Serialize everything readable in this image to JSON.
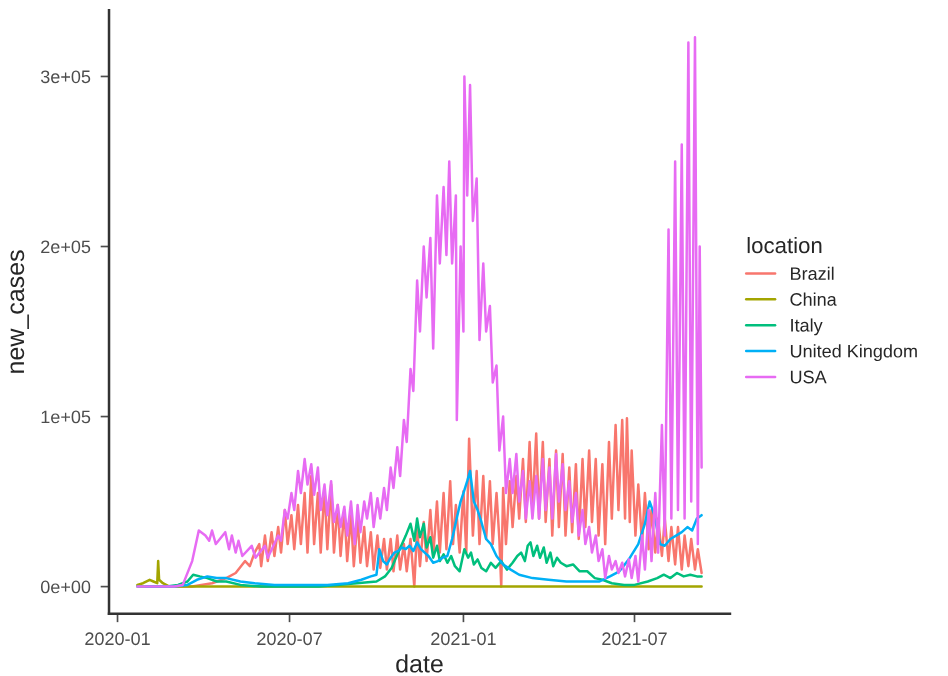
{
  "chart_data": {
    "type": "line",
    "xlabel": "date",
    "ylabel": "new_cases",
    "legend_title": "location",
    "legend": "right",
    "grid": false,
    "marker": "none",
    "line_style": "solid",
    "xlim": [
      "2019-12-23",
      "2021-10-10"
    ],
    "xticks": [
      "2020-01",
      "2020-07",
      "2021-01",
      "2021-07"
    ],
    "ylim": [
      -16000,
      339000
    ],
    "yticks": [
      {
        "value": 0,
        "label": "0e+00"
      },
      {
        "value": 100000,
        "label": "1e+05"
      },
      {
        "value": 200000,
        "label": "2e+05"
      },
      {
        "value": 300000,
        "label": "3e+05"
      }
    ],
    "series": [
      {
        "name": "Brazil",
        "color": "#f8766d",
        "x": [
          "2020-02-26",
          "2020-03-20",
          "2020-04-10",
          "2020-04-25",
          "2020-05-05",
          "2020-05-15",
          "2020-05-20",
          "2020-05-25",
          "2020-05-30",
          "2020-06-01",
          "2020-06-05",
          "2020-06-08",
          "2020-06-12",
          "2020-06-15",
          "2020-06-19",
          "2020-06-22",
          "2020-06-26",
          "2020-06-29",
          "2020-07-03",
          "2020-07-06",
          "2020-07-10",
          "2020-07-13",
          "2020-07-17",
          "2020-07-20",
          "2020-07-24",
          "2020-07-27",
          "2020-07-31",
          "2020-08-03",
          "2020-08-07",
          "2020-08-10",
          "2020-08-14",
          "2020-08-17",
          "2020-08-21",
          "2020-08-24",
          "2020-08-28",
          "2020-08-31",
          "2020-09-04",
          "2020-09-07",
          "2020-09-11",
          "2020-09-14",
          "2020-09-18",
          "2020-09-21",
          "2020-09-25",
          "2020-09-28",
          "2020-10-02",
          "2020-10-05",
          "2020-10-09",
          "2020-10-12",
          "2020-10-16",
          "2020-10-19",
          "2020-10-23",
          "2020-10-26",
          "2020-10-30",
          "2020-11-02",
          "2020-11-06",
          "2020-11-10",
          "2020-11-13",
          "2020-11-16",
          "2020-11-20",
          "2020-11-23",
          "2020-11-27",
          "2020-11-30",
          "2020-12-04",
          "2020-12-07",
          "2020-12-11",
          "2020-12-14",
          "2020-12-18",
          "2020-12-21",
          "2020-12-24",
          "2020-12-28",
          "2021-01-01",
          "2021-01-04",
          "2021-01-07",
          "2021-01-11",
          "2021-01-15",
          "2021-01-18",
          "2021-01-22",
          "2021-01-25",
          "2021-01-29",
          "2021-02-01",
          "2021-02-05",
          "2021-02-08",
          "2021-02-10",
          "2021-02-12",
          "2021-02-15",
          "2021-02-19",
          "2021-02-22",
          "2021-02-26",
          "2021-03-01",
          "2021-03-05",
          "2021-03-08",
          "2021-03-12",
          "2021-03-15",
          "2021-03-19",
          "2021-03-22",
          "2021-03-26",
          "2021-03-29",
          "2021-04-02",
          "2021-04-05",
          "2021-04-09",
          "2021-04-12",
          "2021-04-16",
          "2021-04-19",
          "2021-04-23",
          "2021-04-26",
          "2021-04-30",
          "2021-05-03",
          "2021-05-07",
          "2021-05-10",
          "2021-05-14",
          "2021-05-17",
          "2021-05-21",
          "2021-05-24",
          "2021-05-28",
          "2021-05-31",
          "2021-06-04",
          "2021-06-07",
          "2021-06-11",
          "2021-06-14",
          "2021-06-18",
          "2021-06-21",
          "2021-06-23",
          "2021-06-26",
          "2021-06-28",
          "2021-07-02",
          "2021-07-05",
          "2021-07-09",
          "2021-07-12",
          "2021-07-16",
          "2021-07-19",
          "2021-07-23",
          "2021-07-26",
          "2021-07-30",
          "2021-08-02",
          "2021-08-06",
          "2021-08-09",
          "2021-08-13",
          "2021-08-16",
          "2021-08-20",
          "2021-08-23",
          "2021-08-27",
          "2021-08-30",
          "2021-09-03",
          "2021-09-06",
          "2021-09-10"
        ],
        "values": [
          0,
          0,
          2000,
          5000,
          8000,
          15000,
          12000,
          20000,
          25000,
          12000,
          30000,
          15000,
          32000,
          18000,
          35000,
          20000,
          45000,
          25000,
          42000,
          22000,
          48000,
          25000,
          55000,
          20000,
          65000,
          25000,
          55000,
          20000,
          58000,
          22000,
          60000,
          20000,
          48000,
          18000,
          45000,
          15000,
          42000,
          12000,
          40000,
          14000,
          35000,
          12000,
          32000,
          10000,
          30000,
          11000,
          28000,
          10000,
          28000,
          9000,
          30000,
          10000,
          25000,
          9000,
          28000,
          0,
          35000,
          12000,
          38000,
          15000,
          45000,
          18000,
          50000,
          20000,
          55000,
          22000,
          62000,
          25000,
          48000,
          20000,
          56000,
          20000,
          87000,
          30000,
          68000,
          25000,
          65000,
          28000,
          62000,
          25000,
          55000,
          28000,
          0,
          58000,
          25000,
          62000,
          35000,
          65000,
          40000,
          75000,
          38000,
          85000,
          45000,
          90000,
          40000,
          85000,
          38000,
          75000,
          30000,
          80000,
          35000,
          78000,
          30000,
          70000,
          32000,
          72000,
          28000,
          75000,
          35000,
          80000,
          38000,
          75000,
          30000,
          72000,
          25000,
          85000,
          40000,
          95000,
          45000,
          98000,
          40000,
          99000,
          38000,
          80000,
          30000,
          60000,
          25000,
          55000,
          22000,
          45000,
          20000,
          40000,
          18000,
          40000,
          15000,
          35000,
          13000,
          35000,
          10000,
          30000,
          12000,
          28000,
          10000,
          22000,
          8000
        ]
      },
      {
        "name": "China",
        "color": "#a3a500",
        "x": [
          "2020-01-22",
          "2020-01-28",
          "2020-02-04",
          "2020-02-08",
          "2020-02-12",
          "2020-02-13",
          "2020-02-14",
          "2020-02-18",
          "2020-02-25",
          "2020-03-10",
          "2020-06-01",
          "2021-01-01",
          "2021-09-10"
        ],
        "values": [
          1000,
          2000,
          4000,
          3000,
          2000,
          15000,
          4000,
          2000,
          0,
          0,
          0,
          0,
          0
        ]
      },
      {
        "name": "Italy",
        "color": "#00bf7d",
        "x": [
          "2020-01-22",
          "2020-02-22",
          "2020-03-05",
          "2020-03-15",
          "2020-03-21",
          "2020-03-28",
          "2020-04-05",
          "2020-04-15",
          "2020-04-25",
          "2020-05-10",
          "2020-06-01",
          "2020-07-01",
          "2020-08-01",
          "2020-08-20",
          "2020-09-10",
          "2020-10-01",
          "2020-10-10",
          "2020-10-17",
          "2020-10-24",
          "2020-10-28",
          "2020-11-01",
          "2020-11-06",
          "2020-11-10",
          "2020-11-13",
          "2020-11-16",
          "2020-11-20",
          "2020-11-23",
          "2020-11-27",
          "2020-11-30",
          "2020-12-04",
          "2020-12-07",
          "2020-12-11",
          "2020-12-15",
          "2020-12-19",
          "2020-12-23",
          "2020-12-28",
          "2021-01-02",
          "2021-01-06",
          "2021-01-09",
          "2021-01-12",
          "2021-01-16",
          "2021-01-20",
          "2021-01-25",
          "2021-01-30",
          "2021-02-04",
          "2021-02-10",
          "2021-02-16",
          "2021-02-22",
          "2021-02-27",
          "2021-03-03",
          "2021-03-07",
          "2021-03-10",
          "2021-03-13",
          "2021-03-16",
          "2021-03-20",
          "2021-03-23",
          "2021-03-27",
          "2021-03-30",
          "2021-04-03",
          "2021-04-06",
          "2021-04-10",
          "2021-04-14",
          "2021-04-20",
          "2021-04-27",
          "2021-05-04",
          "2021-05-12",
          "2021-05-20",
          "2021-05-28",
          "2021-06-07",
          "2021-06-20",
          "2021-07-01",
          "2021-07-15",
          "2021-07-25",
          "2021-08-01",
          "2021-08-08",
          "2021-08-15",
          "2021-08-22",
          "2021-08-29",
          "2021-09-05",
          "2021-09-10"
        ],
        "values": [
          0,
          0,
          1000,
          3000,
          7000,
          6000,
          5000,
          3000,
          3000,
          1000,
          0,
          0,
          0,
          1000,
          2000,
          3000,
          6000,
          11000,
          20000,
          25000,
          30000,
          37000,
          27000,
          40000,
          29000,
          37000,
          23000,
          29000,
          17000,
          24000,
          15000,
          19000,
          14000,
          18000,
          12000,
          9000,
          22000,
          17000,
          20000,
          13000,
          16000,
          11000,
          9000,
          14000,
          11000,
          15000,
          10000,
          14000,
          18000,
          20000,
          15000,
          24000,
          26000,
          18000,
          24000,
          17000,
          23000,
          14000,
          20000,
          12000,
          17000,
          14000,
          12000,
          13000,
          9000,
          9000,
          5000,
          4000,
          2000,
          1000,
          1000,
          3000,
          5000,
          7000,
          5000,
          8000,
          6000,
          7000,
          6000,
          6000
        ]
      },
      {
        "name": "United Kingdom",
        "color": "#00b0f6",
        "x": [
          "2020-01-31",
          "2020-03-01",
          "2020-03-15",
          "2020-03-25",
          "2020-04-05",
          "2020-04-15",
          "2020-04-25",
          "2020-05-10",
          "2020-05-25",
          "2020-06-15",
          "2020-07-10",
          "2020-08-10",
          "2020-09-01",
          "2020-09-15",
          "2020-09-25",
          "2020-10-01",
          "2020-10-04",
          "2020-10-08",
          "2020-10-12",
          "2020-10-16",
          "2020-10-20",
          "2020-10-24",
          "2020-10-28",
          "2020-11-01",
          "2020-11-05",
          "2020-11-09",
          "2020-11-13",
          "2020-11-17",
          "2020-11-21",
          "2020-11-25",
          "2020-11-30",
          "2020-12-05",
          "2020-12-10",
          "2020-12-15",
          "2020-12-20",
          "2020-12-24",
          "2020-12-29",
          "2021-01-01",
          "2021-01-05",
          "2021-01-08",
          "2021-01-12",
          "2021-01-16",
          "2021-01-20",
          "2021-01-25",
          "2021-01-30",
          "2021-02-05",
          "2021-02-12",
          "2021-02-20",
          "2021-03-01",
          "2021-03-15",
          "2021-04-01",
          "2021-04-20",
          "2021-05-10",
          "2021-05-25",
          "2021-06-05",
          "2021-06-15",
          "2021-06-25",
          "2021-07-05",
          "2021-07-12",
          "2021-07-17",
          "2021-07-22",
          "2021-07-28",
          "2021-08-02",
          "2021-08-08",
          "2021-08-14",
          "2021-08-20",
          "2021-08-26",
          "2021-08-31",
          "2021-09-05",
          "2021-09-10"
        ],
        "values": [
          0,
          0,
          1000,
          4000,
          6000,
          5000,
          5000,
          3000,
          2000,
          1000,
          1000,
          1000,
          2000,
          4000,
          6000,
          7000,
          22000,
          15000,
          13000,
          17000,
          20000,
          21000,
          23000,
          22000,
          24000,
          21000,
          26000,
          22000,
          20000,
          18000,
          14000,
          15000,
          17000,
          18000,
          28000,
          38000,
          50000,
          55000,
          62000,
          68000,
          50000,
          45000,
          38000,
          28000,
          25000,
          18000,
          13000,
          10000,
          7000,
          5000,
          4000,
          3000,
          3000,
          3000,
          6000,
          9000,
          16000,
          25000,
          37000,
          50000,
          42000,
          25000,
          24000,
          28000,
          30000,
          32000,
          35000,
          33000,
          40000,
          42000
        ]
      },
      {
        "name": "USA",
        "color": "#e76bf3",
        "x": [
          "2020-01-22",
          "2020-03-01",
          "2020-03-10",
          "2020-03-20",
          "2020-03-27",
          "2020-04-03",
          "2020-04-07",
          "2020-04-10",
          "2020-04-14",
          "2020-04-24",
          "2020-04-28",
          "2020-05-01",
          "2020-05-05",
          "2020-05-08",
          "2020-05-12",
          "2020-05-22",
          "2020-05-26",
          "2020-06-05",
          "2020-06-08",
          "2020-06-19",
          "2020-06-22",
          "2020-06-26",
          "2020-06-29",
          "2020-07-03",
          "2020-07-06",
          "2020-07-10",
          "2020-07-13",
          "2020-07-17",
          "2020-07-20",
          "2020-07-24",
          "2020-07-27",
          "2020-07-31",
          "2020-08-03",
          "2020-08-07",
          "2020-08-10",
          "2020-08-14",
          "2020-08-17",
          "2020-08-21",
          "2020-08-24",
          "2020-08-28",
          "2020-08-31",
          "2020-09-04",
          "2020-09-08",
          "2020-09-11",
          "2020-09-14",
          "2020-09-18",
          "2020-09-21",
          "2020-09-25",
          "2020-09-28",
          "2020-10-02",
          "2020-10-05",
          "2020-10-09",
          "2020-10-12",
          "2020-10-16",
          "2020-10-19",
          "2020-10-23",
          "2020-10-26",
          "2020-10-30",
          "2020-11-02",
          "2020-11-06",
          "2020-11-09",
          "2020-11-13",
          "2020-11-16",
          "2020-11-20",
          "2020-11-23",
          "2020-11-27",
          "2020-11-30",
          "2020-12-04",
          "2020-12-07",
          "2020-12-11",
          "2020-12-14",
          "2020-12-17",
          "2020-12-20",
          "2020-12-24",
          "2020-12-25",
          "2020-12-29",
          "2021-01-01",
          "2021-01-02",
          "2021-01-05",
          "2021-01-08",
          "2021-01-11",
          "2021-01-15",
          "2021-01-18",
          "2021-01-22",
          "2021-01-25",
          "2021-01-29",
          "2021-02-01",
          "2021-02-05",
          "2021-02-08",
          "2021-02-12",
          "2021-02-15",
          "2021-02-19",
          "2021-02-22",
          "2021-02-26",
          "2021-03-01",
          "2021-03-05",
          "2021-03-08",
          "2021-03-12",
          "2021-03-15",
          "2021-03-19",
          "2021-03-22",
          "2021-03-26",
          "2021-03-29",
          "2021-04-02",
          "2021-04-05",
          "2021-04-09",
          "2021-04-12",
          "2021-04-16",
          "2021-04-19",
          "2021-04-23",
          "2021-04-26",
          "2021-04-30",
          "2021-05-03",
          "2021-05-07",
          "2021-05-10",
          "2021-05-14",
          "2021-05-17",
          "2021-05-21",
          "2021-05-24",
          "2021-05-28",
          "2021-05-31",
          "2021-06-04",
          "2021-06-07",
          "2021-06-11",
          "2021-06-14",
          "2021-06-18",
          "2021-06-21",
          "2021-06-25",
          "2021-06-28",
          "2021-07-02",
          "2021-07-05",
          "2021-07-09",
          "2021-07-12",
          "2021-07-16",
          "2021-07-19",
          "2021-07-23",
          "2021-07-26",
          "2021-07-30",
          "2021-08-02",
          "2021-08-06",
          "2021-08-09",
          "2021-08-13",
          "2021-08-16",
          "2021-08-20",
          "2021-08-23",
          "2021-08-27",
          "2021-08-30",
          "2021-09-03",
          "2021-09-06",
          "2021-09-08",
          "2021-09-10"
        ],
        "values": [
          0,
          0,
          1000,
          15000,
          33000,
          30000,
          27000,
          33000,
          25000,
          32000,
          22000,
          30000,
          20000,
          27000,
          18000,
          24000,
          17000,
          24000,
          17000,
          30000,
          27000,
          45000,
          40000,
          55000,
          45000,
          68000,
          55000,
          75000,
          60000,
          72000,
          54000,
          70000,
          45000,
          60000,
          42000,
          62000,
          38000,
          48000,
          35000,
          47000,
          30000,
          50000,
          25000,
          48000,
          32000,
          50000,
          40000,
          55000,
          35000,
          52000,
          40000,
          58000,
          45000,
          70000,
          58000,
          82000,
          65000,
          98000,
          85000,
          128000,
          115000,
          180000,
          150000,
          200000,
          170000,
          205000,
          140000,
          230000,
          190000,
          235000,
          195000,
          250000,
          190000,
          230000,
          98000,
          200000,
          150000,
          300000,
          230000,
          295000,
          215000,
          240000,
          145000,
          190000,
          150000,
          165000,
          120000,
          130000,
          80000,
          100000,
          55000,
          75000,
          55000,
          78000,
          50000,
          68000,
          40000,
          62000,
          40000,
          65000,
          40000,
          75000,
          45000,
          70000,
          40000,
          78000,
          50000,
          72000,
          45000,
          62000,
          38000,
          55000,
          30000,
          45000,
          25000,
          35000,
          20000,
          30000,
          15000,
          22000,
          5000,
          18000,
          10000,
          15000,
          8000,
          14000,
          6000,
          16000,
          5000,
          18000,
          3000,
          30000,
          10000,
          45000,
          15000,
          55000,
          20000,
          95000,
          30000,
          210000,
          40000,
          250000,
          45000,
          260000,
          40000,
          320000,
          50000,
          323000,
          25000,
          200000,
          70000
        ]
      }
    ]
  }
}
